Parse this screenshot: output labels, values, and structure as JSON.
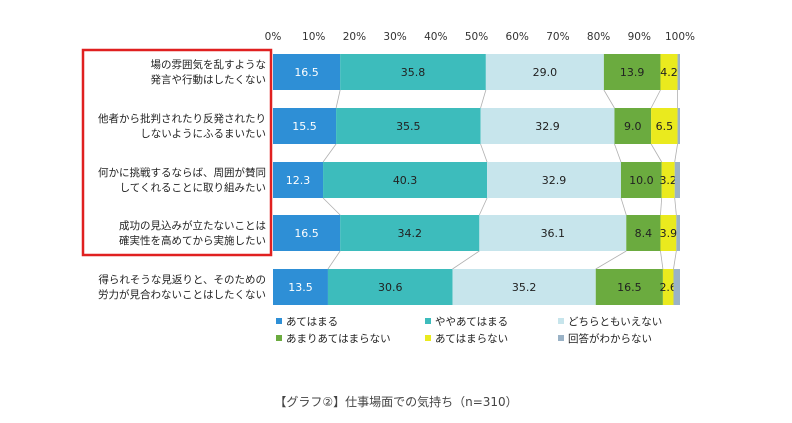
{
  "chart_data": {
    "type": "bar",
    "orientation": "horizontal",
    "stacked": true,
    "xlim": [
      0,
      100
    ],
    "x_ticks": [
      "0%",
      "10%",
      "20%",
      "30%",
      "40%",
      "50%",
      "60%",
      "70%",
      "80%",
      "90%",
      "100%"
    ],
    "categories": [
      [
        "場の雰囲気を乱すような",
        "発言や行動はしたくない"
      ],
      [
        "他者から批判されたり反発されたり",
        "しないようにふるまいたい"
      ],
      [
        "何かに挑戦するならば、周囲が賛同",
        "してくれることに取り組みたい"
      ],
      [
        "成功の見込みが立たないことは",
        "確実性を高めてから実施したい"
      ],
      [
        "得られそうな見返りと、そのための",
        "労力が見合わないことはしたくない"
      ]
    ],
    "highlighted_categories": [
      0,
      1,
      2,
      3
    ],
    "series": [
      {
        "name": "あてはまる",
        "color": "#2e8fd6",
        "values": [
          16.5,
          15.5,
          12.3,
          16.5,
          13.5
        ]
      },
      {
        "name": "ややあてはまる",
        "color": "#3dbcbc",
        "values": [
          35.8,
          35.5,
          40.3,
          34.2,
          30.6
        ]
      },
      {
        "name": "どちらともいえない",
        "color": "#c7e5ec",
        "values": [
          29.0,
          32.9,
          32.9,
          36.1,
          35.2
        ]
      },
      {
        "name": "あまりあてはまらない",
        "color": "#6bab3f",
        "values": [
          13.9,
          9.0,
          10.0,
          8.4,
          16.5
        ]
      },
      {
        "name": "あてはまらない",
        "color": "#eaea1e",
        "values": [
          4.2,
          6.5,
          3.2,
          3.9,
          2.6
        ]
      },
      {
        "name": "回答がわからない",
        "color": "#9ab2c6",
        "values": [
          0.6,
          0.6,
          1.3,
          0.9,
          1.6
        ]
      }
    ],
    "data_labels": [
      [
        "16.5",
        "35.8",
        "29.0",
        "13.9",
        "4.2",
        ""
      ],
      [
        "15.5",
        "35.5",
        "32.9",
        "9.0",
        "6.5",
        ""
      ],
      [
        "12.3",
        "40.3",
        "32.9",
        "10.0",
        "3.2",
        ""
      ],
      [
        "16.5",
        "34.2",
        "36.1",
        "8.4",
        "3.9",
        ""
      ],
      [
        "13.5",
        "30.6",
        "35.2",
        "16.5",
        "2.6",
        ""
      ]
    ],
    "legend_position": "bottom",
    "grid": false
  },
  "caption": "【グラフ②】仕事場面での気持ち（n=310）",
  "colors": {
    "highlight_box": "#e02020",
    "connector": "#b0b0b0",
    "axis_text": "#333333"
  }
}
